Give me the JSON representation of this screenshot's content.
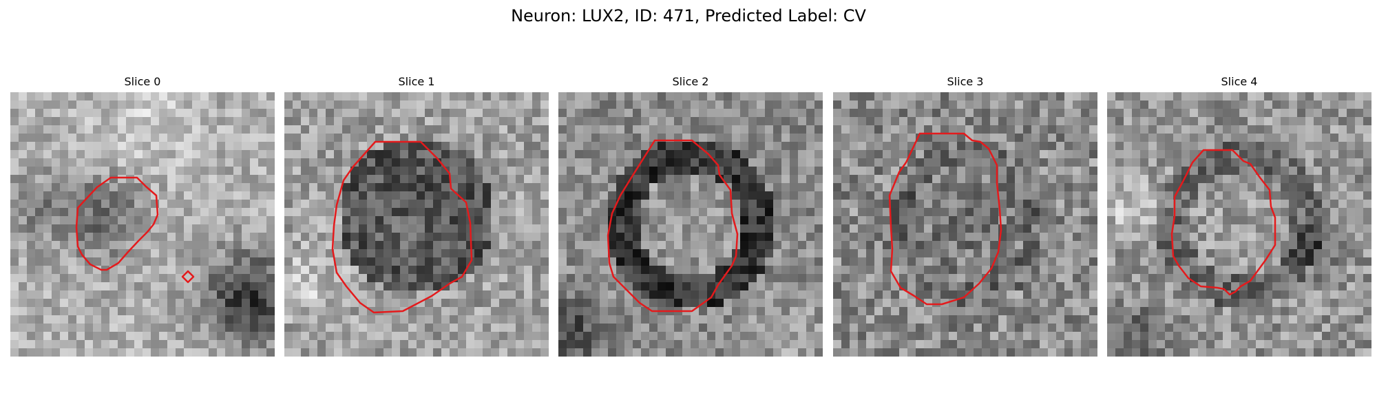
{
  "figure": {
    "title": "Neuron: LUX2, ID: 471, Predicted Label: CV"
  },
  "colors": {
    "contour": "#e41a1c",
    "background": "#ffffff"
  },
  "panels": [
    {
      "title": "Slice 0"
    },
    {
      "title": "Slice 1"
    },
    {
      "title": "Slice 2"
    },
    {
      "title": "Slice 3"
    },
    {
      "title": "Slice 4"
    }
  ]
}
